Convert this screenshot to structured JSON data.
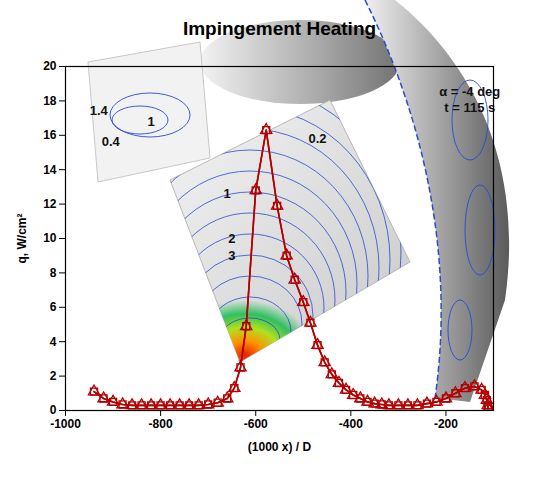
{
  "chart_data": {
    "type": "line",
    "title": "Impingement Heating",
    "x_label": "(1000 x) / D",
    "y_label": "q, W/cm²",
    "x": [
      -940,
      -920,
      -900,
      -880,
      -860,
      -840,
      -820,
      -800,
      -780,
      -760,
      -740,
      -720,
      -700,
      -680,
      -660,
      -645,
      -632,
      -620,
      -600,
      -578,
      -555,
      -535,
      -518,
      -500,
      -485,
      -470,
      -455,
      -440,
      -425,
      -410,
      -395,
      -380,
      -365,
      -350,
      -335,
      -320,
      -300,
      -280,
      -260,
      -240,
      -220,
      -200,
      -180,
      -160,
      -140,
      -125,
      -118,
      -114,
      -112,
      -111
    ],
    "series": [
      {
        "color": "#b40000",
        "marker": "square",
        "line_style": "solid",
        "values": [
          1.1,
          0.7,
          0.5,
          0.35,
          0.3,
          0.3,
          0.3,
          0.3,
          0.3,
          0.3,
          0.3,
          0.3,
          0.35,
          0.45,
          0.7,
          1.3,
          2.5,
          4.9,
          12.8,
          16.3,
          11.9,
          9.0,
          7.6,
          6.3,
          5.1,
          3.8,
          2.8,
          2.1,
          1.6,
          1.2,
          0.9,
          0.7,
          0.5,
          0.4,
          0.35,
          0.3,
          0.3,
          0.3,
          0.3,
          0.4,
          0.5,
          0.7,
          1.0,
          1.3,
          1.4,
          1.2,
          0.9,
          0.6,
          0.3,
          0.1
        ]
      },
      {
        "color": "#b40000",
        "marker": "triangle",
        "line_style": "solid",
        "values": [
          1.1,
          0.7,
          0.5,
          0.35,
          0.3,
          0.3,
          0.3,
          0.3,
          0.3,
          0.3,
          0.3,
          0.3,
          0.35,
          0.45,
          0.7,
          1.3,
          2.5,
          4.9,
          12.8,
          16.3,
          11.9,
          9.0,
          7.6,
          6.3,
          5.1,
          3.8,
          2.8,
          2.1,
          1.6,
          1.2,
          0.9,
          0.7,
          0.5,
          0.4,
          0.35,
          0.3,
          0.3,
          0.3,
          0.3,
          0.4,
          0.5,
          0.7,
          1.0,
          1.3,
          1.4,
          1.2,
          0.9,
          0.6,
          0.3,
          0.1
        ]
      }
    ],
    "xlim": [
      -1000,
      -100
    ],
    "ylim": [
      0,
      20
    ],
    "xticks": [
      -1000,
      -800,
      -600,
      -400,
      -200
    ],
    "yticks": [
      0,
      2,
      4,
      6,
      8,
      10,
      12,
      14,
      16,
      18,
      20
    ],
    "grid": false,
    "annotations": [
      {
        "text": "α = -4 deg",
        "x": -150,
        "y": 18.5
      },
      {
        "text": "t = 115 s",
        "x": -150,
        "y": 17.6
      },
      {
        "text": "1.4",
        "x": -930,
        "y": 17.4
      },
      {
        "text": "1",
        "x": -820,
        "y": 16.8
      },
      {
        "text": "0.4",
        "x": -905,
        "y": 15.6
      },
      {
        "text": "0.2",
        "x": -470,
        "y": 15.8
      },
      {
        "text": "1",
        "x": -660,
        "y": 12.6
      },
      {
        "text": "2",
        "x": -650,
        "y": 10.0
      },
      {
        "text": "3",
        "x": -650,
        "y": 9.0
      }
    ]
  }
}
